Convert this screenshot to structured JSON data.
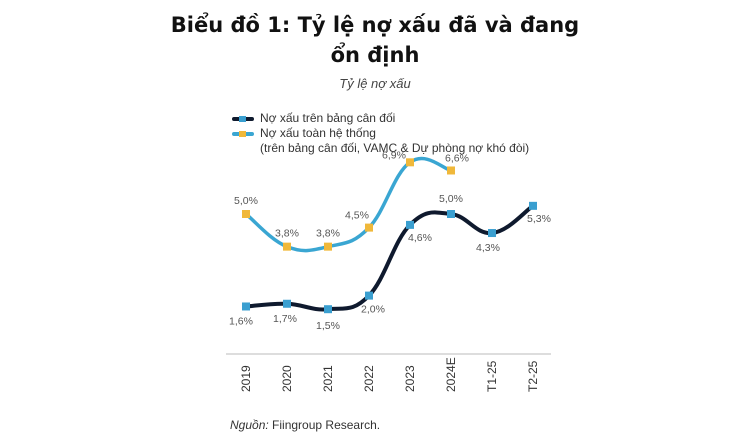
{
  "header": {
    "title_line1": "Biểu đồ 1: Tỷ lệ nợ xấu đã và đang",
    "title_line2": "ổn định",
    "subtitle": "Tỷ lệ nợ xấu"
  },
  "legend": {
    "items": [
      {
        "label": "Nợ xấu trên bảng cân đối",
        "line_color": "#0f1a2e",
        "marker_color": "#3a9fd0"
      },
      {
        "label": "Nợ xấu toàn hệ thống",
        "line_color": "#3aa6d2",
        "marker_color": "#f0b83a"
      }
    ],
    "note": "(trên bảng cân đối, VAMC & Dự phòng nợ khó đòi)"
  },
  "source": {
    "prefix": "Nguồn:",
    "text": " Fiingroup Research."
  },
  "chart_data": {
    "type": "line",
    "title": "Biểu đồ 1: Tỷ lệ nợ xấu đã và đang ổn định",
    "subtitle": "Tỷ lệ nợ xấu",
    "xlabel": "",
    "ylabel": "",
    "categories": [
      "2019",
      "2020",
      "2021",
      "2022",
      "2023",
      "2024E",
      "T1-25",
      "T2-25"
    ],
    "series": [
      {
        "name": "Nợ xấu trên bảng cân đối",
        "values": [
          1.6,
          1.7,
          1.5,
          2.0,
          4.6,
          5.0,
          4.3,
          5.3
        ],
        "labels": [
          "1,6%",
          "1,7%",
          "1,5%",
          "2,0%",
          "4,6%",
          "5,0%",
          "4,3%",
          "5,3%"
        ],
        "color": "#0f1a2e",
        "marker_color": "#3a9fd0"
      },
      {
        "name": "Nợ xấu toàn hệ thống (trên bảng cân đối, VAMC & Dự phòng nợ khó đòi)",
        "values": [
          5.0,
          3.8,
          3.8,
          4.5,
          6.9,
          6.6,
          null,
          null
        ],
        "labels": [
          "5,0%",
          "3,8%",
          "3,8%",
          "4,5%",
          "6,9%",
          "6,6%",
          "",
          ""
        ],
        "color": "#3aa6d2",
        "marker_color": "#f0b83a"
      }
    ],
    "grid": false,
    "legend_position": "top-left",
    "smooth": true,
    "x_tick_rotation": -90
  }
}
